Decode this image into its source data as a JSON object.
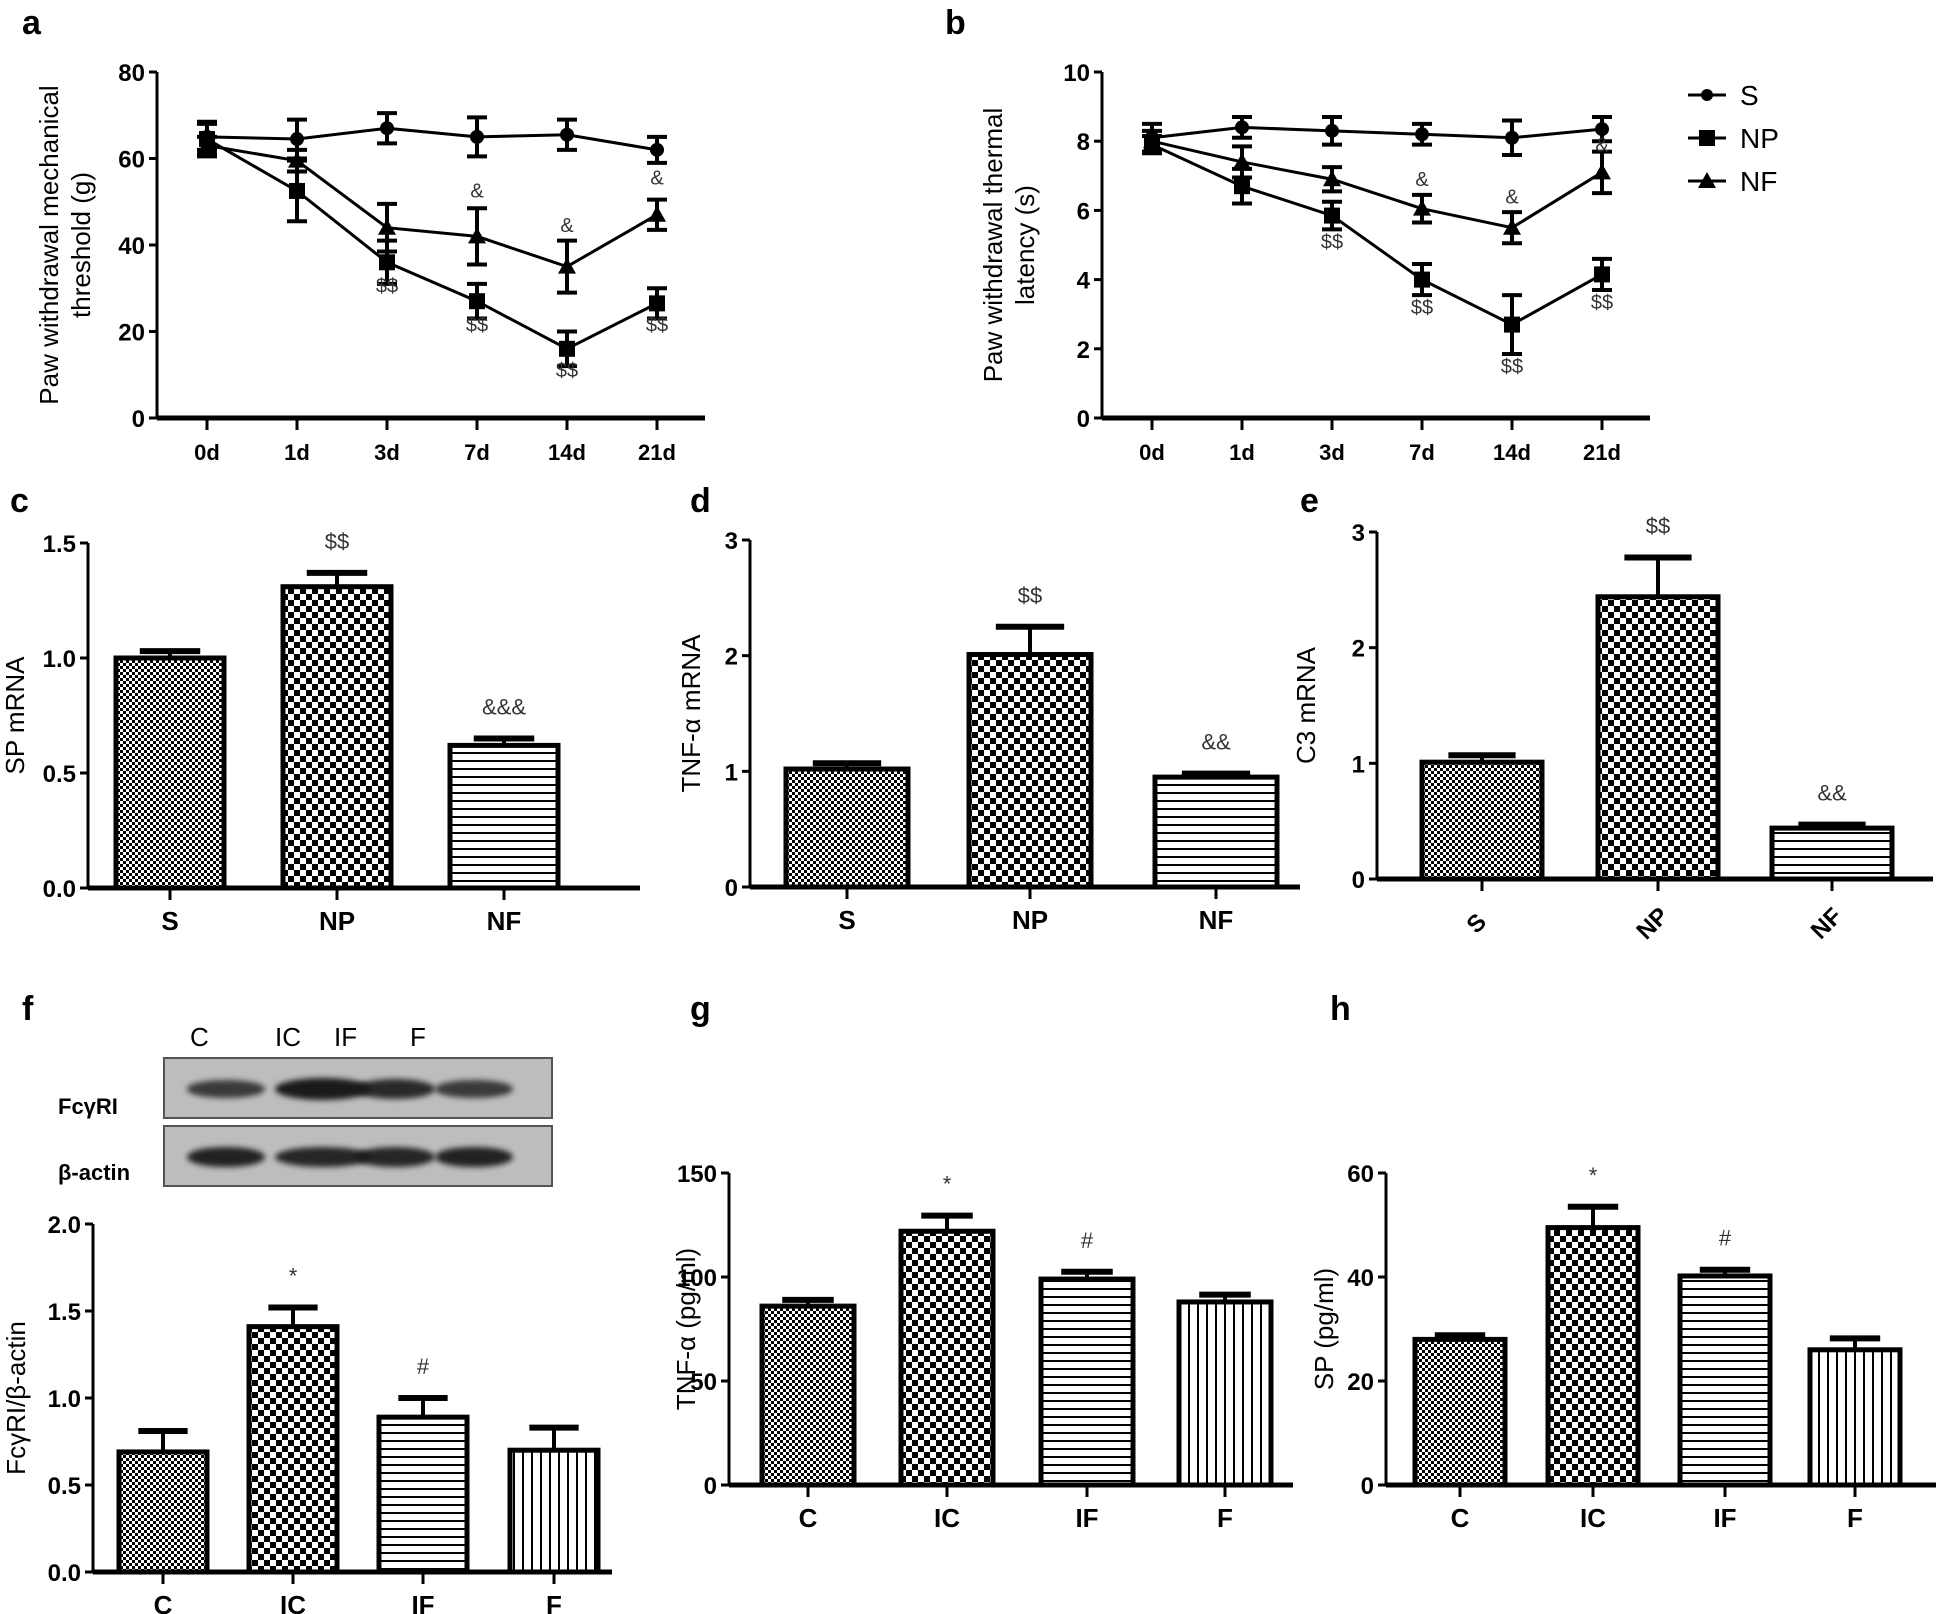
{
  "panels_letters": [
    "a",
    "b",
    "c",
    "d",
    "e",
    "f",
    "g",
    "h"
  ],
  "chart_data": [
    {
      "id": "a",
      "type": "line",
      "title": "",
      "xlabel": "",
      "ylabel": "Paw withdrawal mechanical threshold (g)",
      "ylabel_lines": [
        "Paw withdrawal mechanical",
        "threshold (g)"
      ],
      "categories": [
        "0d",
        "1d",
        "3d",
        "7d",
        "14d",
        "21d"
      ],
      "yticks": [
        "0",
        "20",
        "40",
        "60",
        "80"
      ],
      "ylim": [
        0,
        80
      ],
      "series": [
        {
          "name": "S",
          "marker": "circle",
          "values": [
            65,
            64.5,
            67,
            65,
            65.5,
            62
          ],
          "errors": [
            3,
            4.5,
            3.5,
            4.5,
            3.5,
            3
          ]
        },
        {
          "name": "NP",
          "marker": "square",
          "values": [
            64.5,
            52.5,
            36,
            27,
            16,
            26.5
          ],
          "errors": [
            4,
            7,
            5,
            4,
            4,
            3.5
          ]
        },
        {
          "name": "NF",
          "marker": "triangle",
          "values": [
            63,
            59.5,
            44,
            42,
            35,
            47
          ],
          "errors": [
            2,
            2.5,
            5.5,
            6.5,
            6,
            3.5
          ]
        }
      ],
      "annotations": [
        {
          "text": "$$",
          "x": "3d",
          "y": 29
        },
        {
          "text": "$$",
          "x": "7d",
          "y": 20
        },
        {
          "text": "$$",
          "x": "14d",
          "y": 9.5
        },
        {
          "text": "$$",
          "x": "21d",
          "y": 20
        },
        {
          "text": "&",
          "x": "7d",
          "y": 51
        },
        {
          "text": "&",
          "x": "14d",
          "y": 43
        },
        {
          "text": "&",
          "x": "21d",
          "y": 54
        }
      ]
    },
    {
      "id": "b",
      "type": "line",
      "title": "",
      "xlabel": "",
      "ylabel": "Paw withdrawal thermal latency (s)",
      "ylabel_lines": [
        "Paw withdrawal thermal",
        "latency (s)"
      ],
      "categories": [
        "0d",
        "1d",
        "3d",
        "7d",
        "14d",
        "21d"
      ],
      "yticks": [
        "0",
        "2",
        "4",
        "6",
        "8",
        "10"
      ],
      "ylim": [
        0,
        10
      ],
      "legend": {
        "position": "top-right",
        "entries": [
          "S",
          "NP",
          "NF"
        ]
      },
      "series": [
        {
          "name": "S",
          "marker": "circle",
          "values": [
            8.1,
            8.4,
            8.3,
            8.2,
            8.1,
            8.35
          ],
          "errors": [
            0.4,
            0.3,
            0.4,
            0.3,
            0.5,
            0.35
          ]
        },
        {
          "name": "NP",
          "marker": "square",
          "values": [
            7.9,
            6.7,
            5.85,
            4.0,
            2.7,
            4.15
          ],
          "errors": [
            0.25,
            0.5,
            0.4,
            0.45,
            0.85,
            0.45
          ]
        },
        {
          "name": "NF",
          "marker": "triangle",
          "values": [
            8.0,
            7.4,
            6.9,
            6.05,
            5.5,
            7.1
          ],
          "errors": [
            0.3,
            0.45,
            0.35,
            0.4,
            0.45,
            0.6
          ]
        }
      ],
      "annotations": [
        {
          "text": "$$",
          "x": "3d",
          "y": 4.9
        },
        {
          "text": "$$",
          "x": "7d",
          "y": 3.0
        },
        {
          "text": "$$",
          "x": "14d",
          "y": 1.3
        },
        {
          "text": "$$",
          "x": "21d",
          "y": 3.15
        },
        {
          "text": "&",
          "x": "7d",
          "y": 6.7
        },
        {
          "text": "&",
          "x": "14d",
          "y": 6.2
        },
        {
          "text": "&",
          "x": "21d",
          "y": 7.7
        }
      ]
    },
    {
      "id": "c",
      "type": "bar",
      "ylabel": "SP mRNA",
      "categories": [
        "S",
        "NP",
        "NF"
      ],
      "yticks": [
        "0.0",
        "0.5",
        "1.0",
        "1.5"
      ],
      "ylim": [
        0,
        1.5
      ],
      "values": [
        1.0,
        1.31,
        0.62
      ],
      "errors": [
        0.03,
        0.06,
        0.03
      ],
      "patterns": [
        "fine-check",
        "coarse-check",
        "hstripe"
      ],
      "annotations": [
        "",
        "$$",
        "&&&"
      ],
      "rotate_xticks": false
    },
    {
      "id": "d",
      "type": "bar",
      "ylabel": "TNF-α mRNA",
      "categories": [
        "S",
        "NP",
        "NF"
      ],
      "yticks": [
        "0",
        "1",
        "2",
        "3"
      ],
      "ylim": [
        0,
        3
      ],
      "values": [
        1.02,
        2.01,
        0.95
      ],
      "errors": [
        0.05,
        0.24,
        0.03
      ],
      "patterns": [
        "fine-check",
        "coarse-check",
        "hstripe"
      ],
      "annotations": [
        "",
        "$$",
        "&&"
      ],
      "rotate_xticks": false
    },
    {
      "id": "e",
      "type": "bar",
      "ylabel": "C3 mRNA",
      "categories": [
        "S",
        "NP",
        "NF"
      ],
      "yticks": [
        "0",
        "1",
        "2",
        "3"
      ],
      "ylim": [
        0,
        3
      ],
      "values": [
        1.01,
        2.44,
        0.44
      ],
      "errors": [
        0.06,
        0.34,
        0.03
      ],
      "patterns": [
        "fine-check",
        "coarse-check",
        "hstripe"
      ],
      "annotations": [
        "",
        "$$",
        "&&"
      ],
      "rotate_xticks": true
    },
    {
      "id": "f",
      "type": "bar",
      "ylabel": "FcγRI/β-actin",
      "categories": [
        "C",
        "IC",
        "IF",
        "F"
      ],
      "yticks": [
        "0.0",
        "0.5",
        "1.0",
        "1.5",
        "2.0"
      ],
      "ylim": [
        0,
        2.0
      ],
      "values": [
        0.69,
        1.41,
        0.89,
        0.7
      ],
      "errors": [
        0.12,
        0.11,
        0.11,
        0.13
      ],
      "patterns": [
        "fine-check",
        "coarse-check",
        "hstripe",
        "vstripe"
      ],
      "annotations": [
        "",
        "*",
        "#",
        ""
      ],
      "rotate_xticks": false
    },
    {
      "id": "g",
      "type": "bar",
      "ylabel": "TNF-α (pg/ml)",
      "categories": [
        "C",
        "IC",
        "IF",
        "F"
      ],
      "yticks": [
        "0",
        "50",
        "100",
        "150"
      ],
      "ylim": [
        0,
        150
      ],
      "values": [
        86,
        122,
        99,
        88
      ],
      "errors": [
        3,
        7.5,
        3.5,
        3.5
      ],
      "patterns": [
        "fine-check",
        "coarse-check",
        "hstripe",
        "vstripe"
      ],
      "annotations": [
        "",
        "*",
        "#",
        ""
      ],
      "rotate_xticks": false
    },
    {
      "id": "h",
      "type": "bar",
      "ylabel": "SP (pg/ml)",
      "categories": [
        "C",
        "IC",
        "IF",
        "F"
      ],
      "yticks": [
        "0",
        "20",
        "40",
        "60"
      ],
      "ylim": [
        0,
        60
      ],
      "values": [
        28,
        49.5,
        40.2,
        26
      ],
      "errors": [
        0.8,
        4,
        1.2,
        2.2
      ],
      "patterns": [
        "fine-check",
        "coarse-check",
        "hstripe",
        "vstripe"
      ],
      "annotations": [
        "",
        "*",
        "#",
        ""
      ],
      "rotate_xticks": false
    }
  ],
  "western_blot": {
    "lanes": [
      "C",
      "IC",
      "IF",
      "F"
    ],
    "rows": [
      {
        "label": "FcγRI",
        "band_intensity": [
          0.6,
          1.0,
          0.8,
          0.6
        ]
      },
      {
        "label": "β-actin",
        "band_intensity": [
          0.9,
          0.85,
          0.85,
          0.9
        ]
      }
    ]
  }
}
